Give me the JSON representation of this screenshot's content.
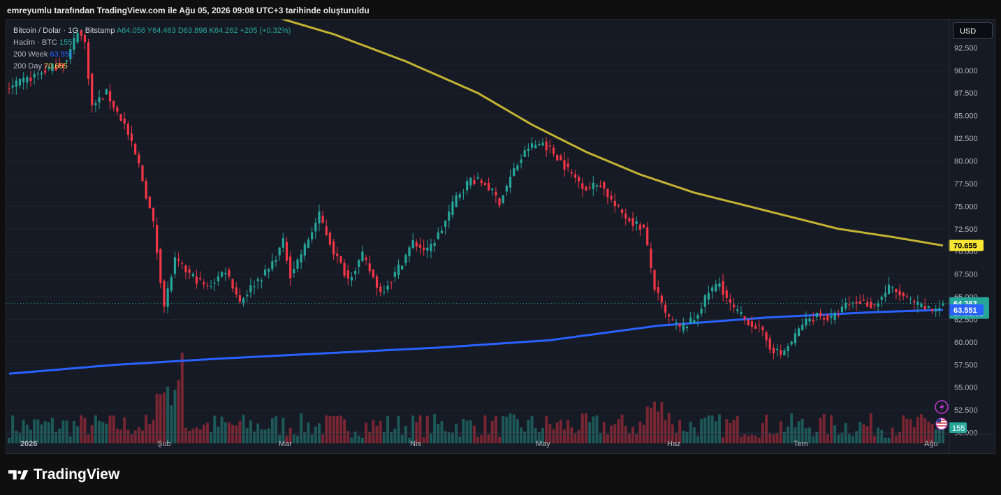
{
  "header": {
    "caption": "emreyumlu tarafından TradingView.com ile Ağu 05, 2026 09:08 UTC+3 tarihinde oluşturuldu"
  },
  "brand": {
    "name": "TradingView"
  },
  "legend": {
    "symbol": "Bitcoin / Dolar · 1G · Bitstamp",
    "open": "A64.056",
    "high": "Y64.463",
    "low": "D63.898",
    "close": "K64.262",
    "change": "+205 (+0,32%)",
    "volume_label": "Hacim · BTC",
    "volume_value": "155",
    "ma_week_label": "200 Week",
    "ma_week_value": "63.551",
    "ma_day_label": "200 Day",
    "ma_day_value": "70.655"
  },
  "currency_button": "USD",
  "colors": {
    "up": "#26a69a",
    "down": "#f23645",
    "ma_week": "#2962ff",
    "ma_day": "#c4b333",
    "background": "#161a25"
  },
  "icons": [
    "lightning-icon",
    "us-flag-icon"
  ],
  "chart_data": {
    "type": "candlestick",
    "title": "Bitcoin / Dolar · 1G · Bitstamp",
    "ylim": [
      48500,
      96000
    ],
    "y_ticks": [
      "92.500",
      "90.000",
      "87.500",
      "85.000",
      "82.500",
      "80.000",
      "77.500",
      "75.000",
      "72.500",
      "70.000",
      "67.500",
      "65.000",
      "62.500",
      "60.000",
      "57.500",
      "55.000",
      "52.500",
      "50.000"
    ],
    "x_ticks": [
      "2026",
      "Şub",
      "Mar",
      "Nis",
      "May",
      "Haz",
      "Tem",
      "Ağu"
    ],
    "last_price": "64.262",
    "countdown": "17:51:32",
    "ma_week_tag": "63.551",
    "ma_day_tag": "70.655",
    "volume_tag": "155",
    "price_keypoints": [
      [
        0,
        88000
      ],
      [
        10,
        90000
      ],
      [
        16,
        91000
      ],
      [
        19,
        94500
      ],
      [
        21,
        93000
      ],
      [
        23,
        86000
      ],
      [
        27,
        87500
      ],
      [
        32,
        84000
      ],
      [
        36,
        79500
      ],
      [
        40,
        73000
      ],
      [
        43,
        64000
      ],
      [
        46,
        69000
      ],
      [
        50,
        67500
      ],
      [
        55,
        66000
      ],
      [
        60,
        68000
      ],
      [
        64,
        64500
      ],
      [
        68,
        66500
      ],
      [
        72,
        68000
      ],
      [
        76,
        71000
      ],
      [
        78,
        67500
      ],
      [
        82,
        70500
      ],
      [
        86,
        74000
      ],
      [
        90,
        70000
      ],
      [
        94,
        67000
      ],
      [
        98,
        69500
      ],
      [
        103,
        65500
      ],
      [
        107,
        67500
      ],
      [
        112,
        71000
      ],
      [
        116,
        70000
      ],
      [
        120,
        72500
      ],
      [
        124,
        76000
      ],
      [
        128,
        78000
      ],
      [
        132,
        77500
      ],
      [
        136,
        75500
      ],
      [
        140,
        79000
      ],
      [
        144,
        81500
      ],
      [
        148,
        82000
      ],
      [
        152,
        80500
      ],
      [
        156,
        78500
      ],
      [
        160,
        77000
      ],
      [
        164,
        77500
      ],
      [
        168,
        75000
      ],
      [
        172,
        73500
      ],
      [
        176,
        72500
      ],
      [
        179,
        66000
      ],
      [
        182,
        63000
      ],
      [
        186,
        61500
      ],
      [
        190,
        62500
      ],
      [
        194,
        65500
      ],
      [
        197,
        66500
      ],
      [
        200,
        64000
      ],
      [
        204,
        62500
      ],
      [
        208,
        61500
      ],
      [
        211,
        59500
      ],
      [
        214,
        58600
      ],
      [
        217,
        60000
      ],
      [
        220,
        62000
      ],
      [
        224,
        63000
      ],
      [
        228,
        62500
      ],
      [
        232,
        64000
      ],
      [
        236,
        64500
      ],
      [
        240,
        64000
      ],
      [
        244,
        66000
      ],
      [
        248,
        65000
      ],
      [
        252,
        64000
      ],
      [
        256,
        63500
      ],
      [
        259,
        64262
      ]
    ],
    "ma_week_keypoints": [
      [
        0,
        56500
      ],
      [
        30,
        57500
      ],
      [
        60,
        58200
      ],
      [
        90,
        58800
      ],
      [
        120,
        59400
      ],
      [
        150,
        60200
      ],
      [
        180,
        61800
      ],
      [
        210,
        62700
      ],
      [
        240,
        63300
      ],
      [
        259,
        63551
      ]
    ],
    "ma_day_keypoints": [
      [
        73,
        96000
      ],
      [
        90,
        94000
      ],
      [
        110,
        91000
      ],
      [
        130,
        87500
      ],
      [
        145,
        84000
      ],
      [
        160,
        81000
      ],
      [
        175,
        78500
      ],
      [
        190,
        76500
      ],
      [
        210,
        74500
      ],
      [
        230,
        72500
      ],
      [
        245,
        71600
      ],
      [
        259,
        70655
      ]
    ]
  }
}
